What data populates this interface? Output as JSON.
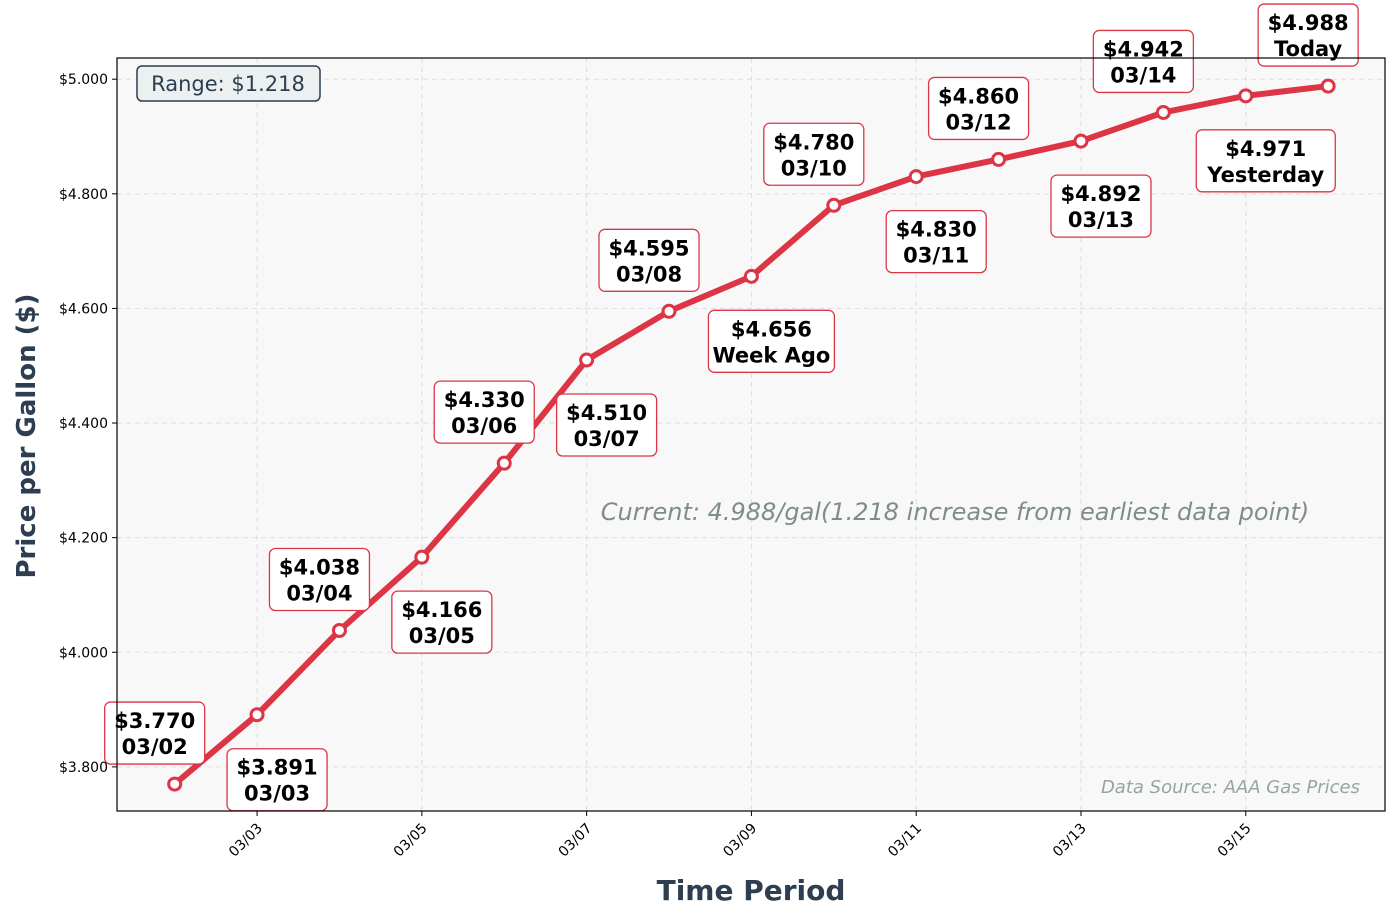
{
  "chart_data": {
    "type": "line",
    "xlabel": "Time Period",
    "ylabel": "Price per Gallon ($)",
    "x": [
      "03/02",
      "03/03",
      "03/04",
      "03/05",
      "03/06",
      "03/07",
      "03/08",
      "03/09",
      "03/10",
      "03/11",
      "03/12",
      "03/13",
      "03/14",
      "03/15",
      "03/16"
    ],
    "values": [
      3.77,
      3.891,
      4.038,
      4.166,
      4.33,
      4.51,
      4.595,
      4.656,
      4.78,
      4.83,
      4.86,
      4.892,
      4.942,
      4.971,
      4.988
    ],
    "point_labels": [
      [
        "$3.770",
        "03/02"
      ],
      [
        "$3.891",
        "03/03"
      ],
      [
        "$4.038",
        "03/04"
      ],
      [
        "$4.166",
        "03/05"
      ],
      [
        "$4.330",
        "03/06"
      ],
      [
        "$4.510",
        "03/07"
      ],
      [
        "$4.595",
        "03/08"
      ],
      [
        "$4.656",
        "Week Ago"
      ],
      [
        "$4.780",
        "03/10"
      ],
      [
        "$4.830",
        "03/11"
      ],
      [
        "$4.860",
        "03/12"
      ],
      [
        "$4.892",
        "03/13"
      ],
      [
        "$4.942",
        "03/14"
      ],
      [
        "$4.971",
        "Yesterday"
      ],
      [
        "$4.988",
        "Today"
      ]
    ],
    "x_ticks": [
      "03/03",
      "03/05",
      "03/07",
      "03/09",
      "03/11",
      "03/13",
      "03/15"
    ],
    "y_ticks": [
      3.8,
      4.0,
      4.2,
      4.4,
      4.6,
      4.8,
      5.0
    ],
    "y_tick_labels": [
      "$3.800",
      "$4.000",
      "$4.200",
      "$4.400",
      "$4.600",
      "$4.800",
      "$5.000"
    ],
    "ylim": [
      3.723,
      5.037
    ],
    "xlim_days_from_first": [
      -0.7,
      14.69
    ],
    "grid": true,
    "line_color": "#dc3545",
    "annotations": {
      "range": "Range: $1.218",
      "current": "Current: 4.988/gal(1.218 increase from earliest data point)",
      "source": "Data Source: AAA Gas Prices"
    }
  }
}
